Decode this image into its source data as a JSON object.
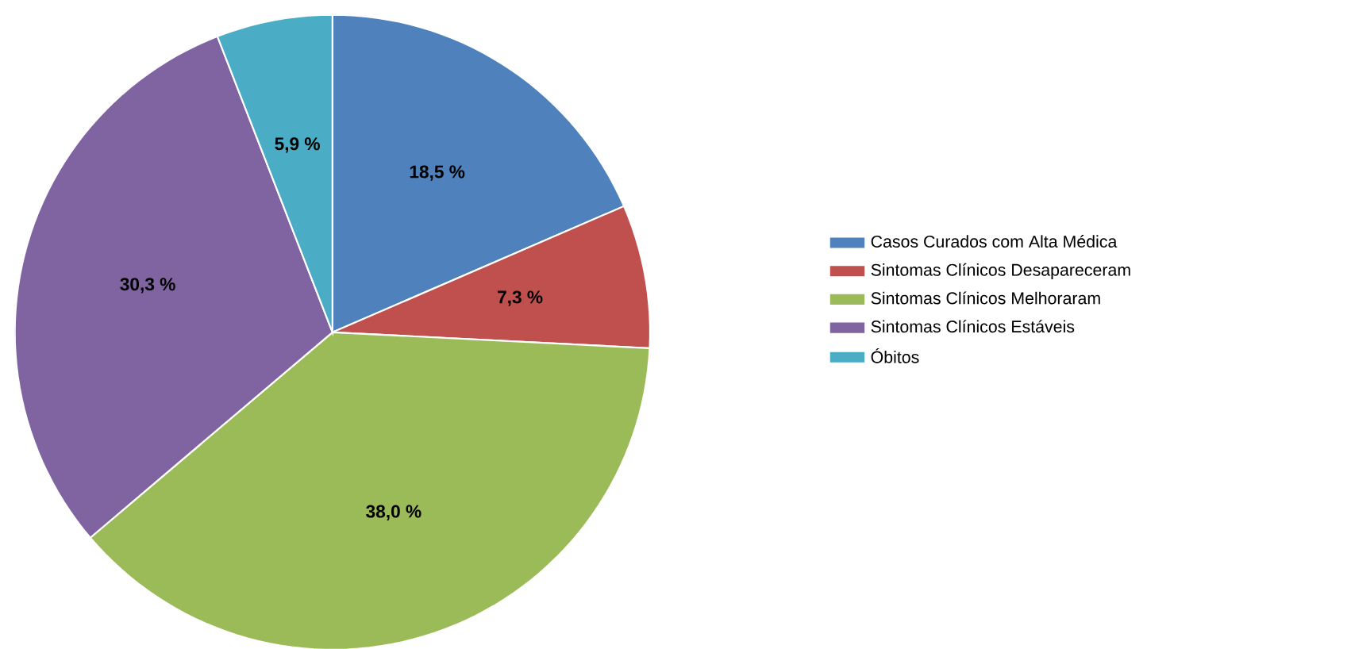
{
  "chart_data": {
    "type": "pie",
    "categories": [
      "Casos Curados com Alta Médica",
      "Sintomas Clínicos Desapareceram",
      "Sintomas Clínicos Melhoraram",
      "Sintomas Clínicos Estáveis",
      "Óbitos"
    ],
    "values": [
      18.5,
      7.3,
      38.0,
      30.3,
      5.9
    ],
    "colors": [
      "#4f81bd",
      "#c0504d",
      "#9bbb59",
      "#8064a2",
      "#4bacc6"
    ],
    "value_labels": [
      "18,5 %",
      "7,3 %",
      "38,0 %",
      "30,3 %",
      "5,9 %"
    ],
    "legend": "right"
  }
}
